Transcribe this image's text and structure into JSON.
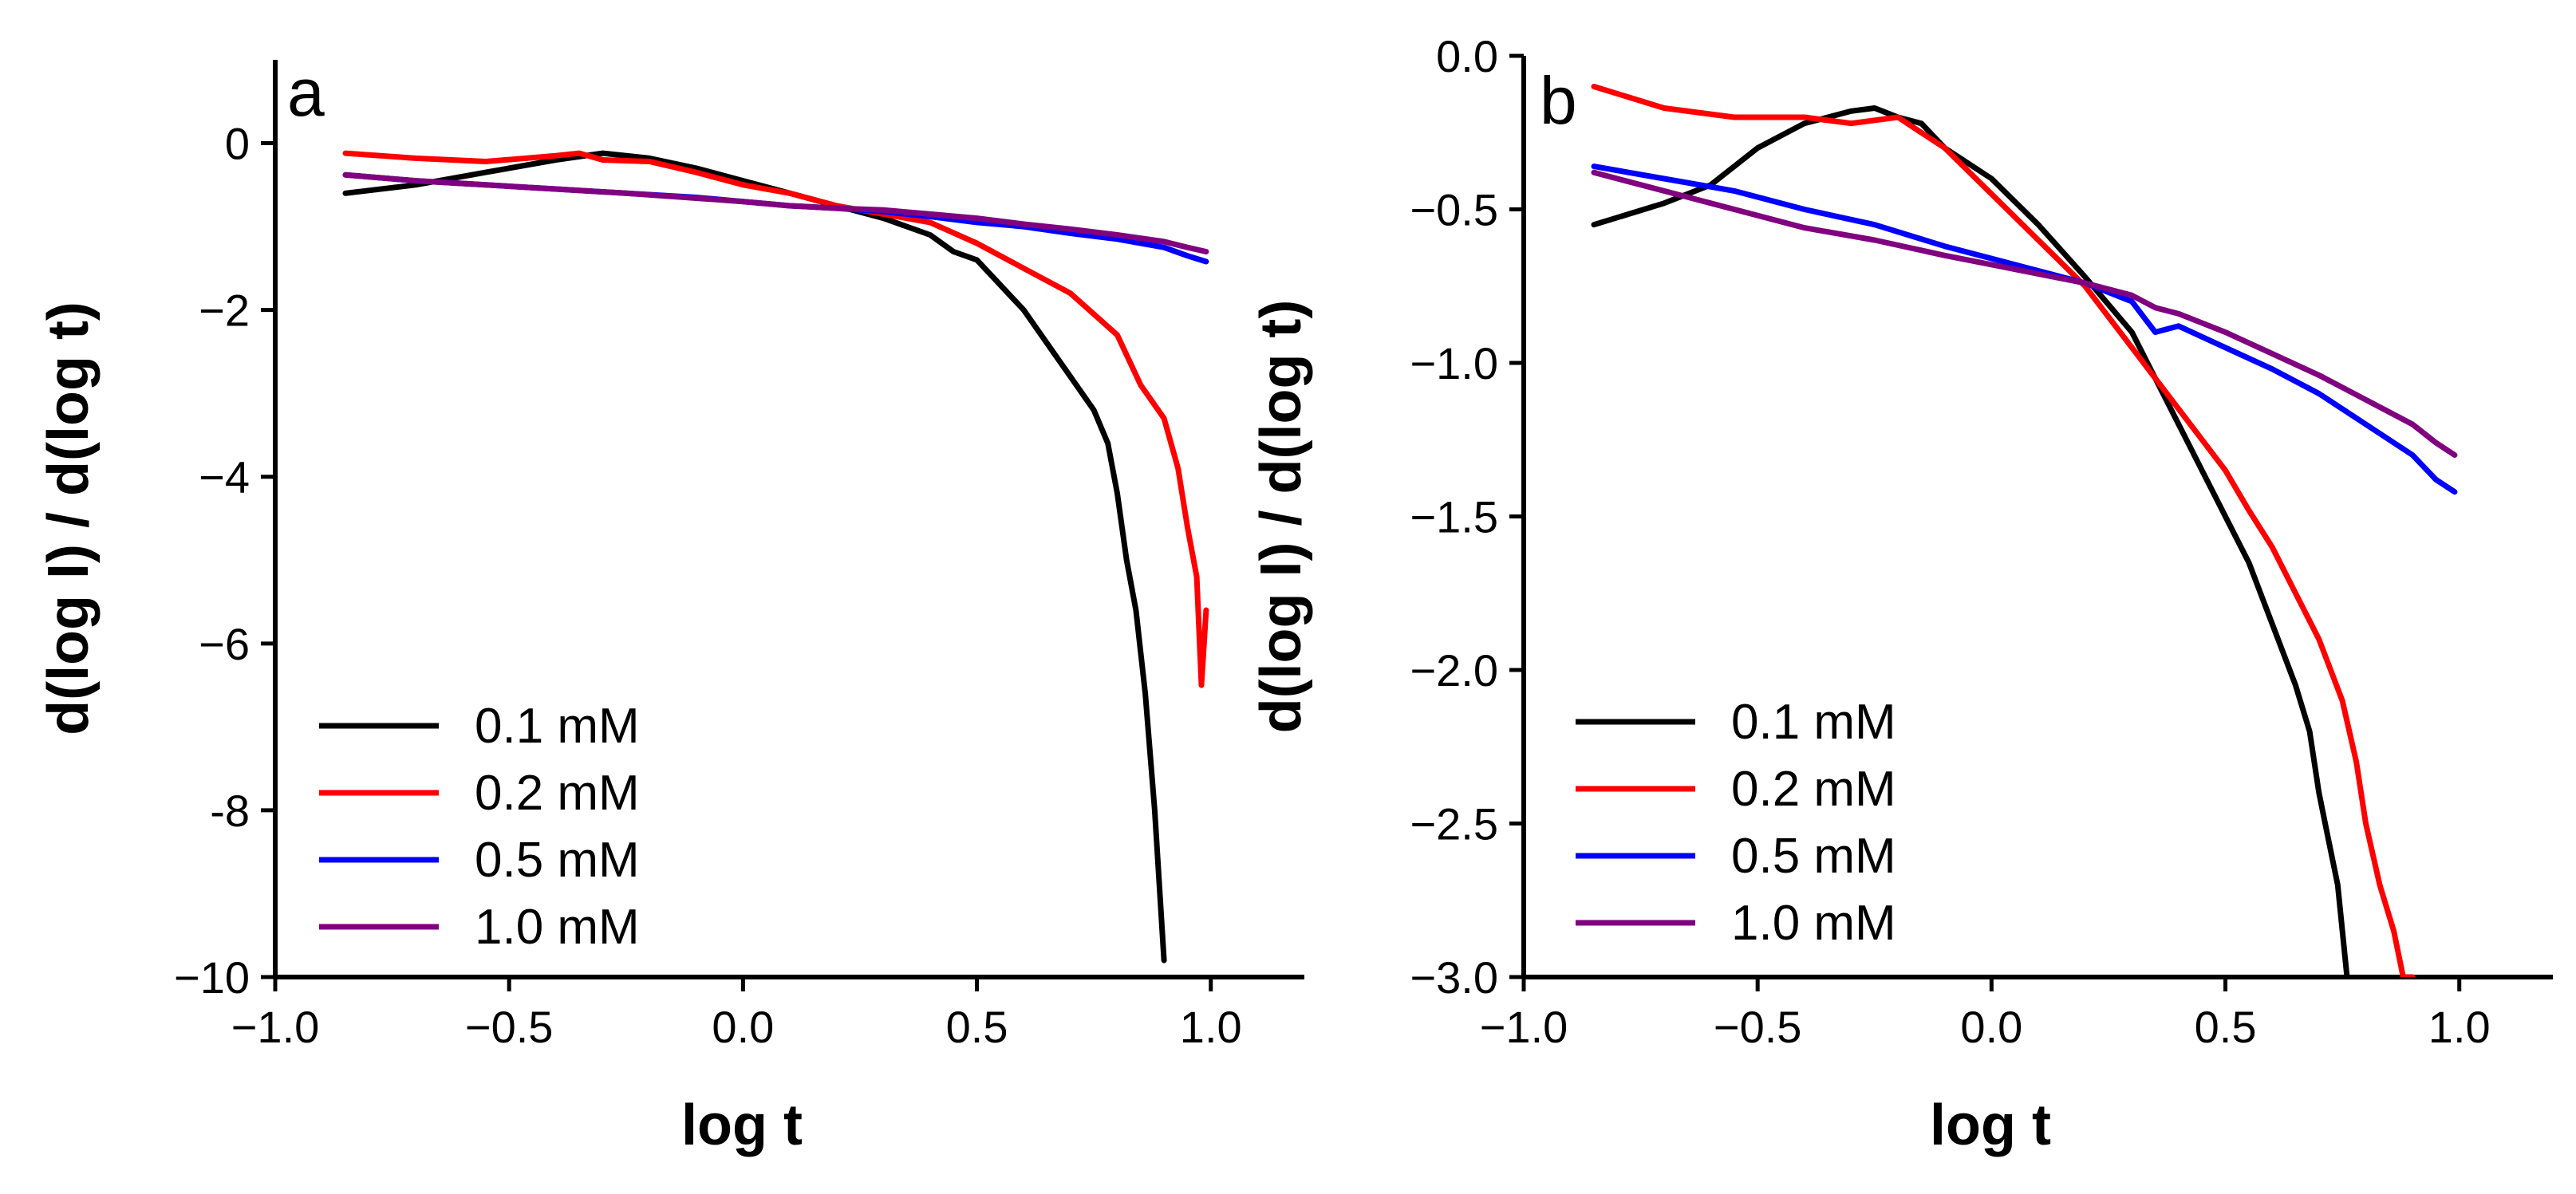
{
  "chart_data": [
    {
      "type": "line",
      "panel_label": "a",
      "xlabel": "log t",
      "ylabel": "d(log I) / d(log t)",
      "xlim": [
        -1.0,
        1.2
      ],
      "ylim": [
        -10,
        1
      ],
      "xticks": [
        -1.0,
        -0.5,
        0.0,
        0.5,
        1.0
      ],
      "xtick_labels": [
        "−1.0",
        "−0.5",
        "0.0",
        "0.5",
        "1.0"
      ],
      "yticks": [
        0,
        -2,
        -4,
        -6,
        -8,
        -10
      ],
      "ytick_labels": [
        "0",
        "−2",
        "−4",
        "−6",
        "-8",
        "−10"
      ],
      "legend_position": "lower-left",
      "series": [
        {
          "name": "0.1 mM",
          "color": "#000000",
          "x": [
            -0.85,
            -0.7,
            -0.55,
            -0.4,
            -0.3,
            -0.2,
            -0.1,
            0.0,
            0.1,
            0.2,
            0.3,
            0.4,
            0.45,
            0.5,
            0.55,
            0.6,
            0.65,
            0.7,
            0.75,
            0.78,
            0.8,
            0.82,
            0.84,
            0.86,
            0.88,
            0.9
          ],
          "y": [
            -0.6,
            -0.5,
            -0.35,
            -0.2,
            -0.12,
            -0.18,
            -0.3,
            -0.45,
            -0.6,
            -0.75,
            -0.9,
            -1.1,
            -1.3,
            -1.4,
            -1.7,
            -2.0,
            -2.4,
            -2.8,
            -3.2,
            -3.6,
            -4.2,
            -5.0,
            -5.6,
            -6.6,
            -8.0,
            -9.8
          ]
        },
        {
          "name": "0.2 mM",
          "color": "#ff0000",
          "x": [
            -0.85,
            -0.7,
            -0.55,
            -0.4,
            -0.35,
            -0.3,
            -0.2,
            -0.1,
            0.0,
            0.1,
            0.2,
            0.3,
            0.4,
            0.5,
            0.6,
            0.7,
            0.8,
            0.85,
            0.9,
            0.93,
            0.95,
            0.97,
            0.98,
            0.99
          ],
          "y": [
            -0.12,
            -0.18,
            -0.22,
            -0.15,
            -0.12,
            -0.2,
            -0.22,
            -0.35,
            -0.5,
            -0.6,
            -0.75,
            -0.85,
            -0.95,
            -1.2,
            -1.5,
            -1.8,
            -2.3,
            -2.9,
            -3.3,
            -3.9,
            -4.6,
            -5.2,
            -6.5,
            -5.6
          ]
        },
        {
          "name": "0.5 mM",
          "color": "#0000ff",
          "x": [
            -0.85,
            -0.7,
            -0.55,
            -0.4,
            -0.25,
            -0.1,
            0.0,
            0.1,
            0.2,
            0.3,
            0.4,
            0.5,
            0.6,
            0.7,
            0.8,
            0.9,
            0.95,
            0.99
          ],
          "y": [
            -0.38,
            -0.45,
            -0.5,
            -0.55,
            -0.6,
            -0.65,
            -0.7,
            -0.75,
            -0.78,
            -0.82,
            -0.88,
            -0.95,
            -1.0,
            -1.08,
            -1.15,
            -1.25,
            -1.35,
            -1.42
          ]
        },
        {
          "name": "1.0 mM",
          "color": "#800080",
          "x": [
            -0.85,
            -0.7,
            -0.55,
            -0.4,
            -0.25,
            -0.1,
            0.0,
            0.1,
            0.2,
            0.3,
            0.4,
            0.5,
            0.6,
            0.7,
            0.8,
            0.9,
            0.95,
            0.99
          ],
          "y": [
            -0.38,
            -0.45,
            -0.5,
            -0.55,
            -0.6,
            -0.66,
            -0.7,
            -0.75,
            -0.78,
            -0.8,
            -0.85,
            -0.9,
            -0.97,
            -1.03,
            -1.1,
            -1.18,
            -1.25,
            -1.3
          ]
        }
      ]
    },
    {
      "type": "line",
      "panel_label": "b",
      "xlabel": "log t",
      "ylabel": "d(log I) / d(log t)",
      "xlim": [
        -1.0,
        1.2
      ],
      "ylim": [
        -3.0,
        0.0
      ],
      "xticks": [
        -1.0,
        -0.5,
        0.0,
        0.5,
        1.0
      ],
      "xtick_labels": [
        "−1.0",
        "−0.5",
        "0.0",
        "0.5",
        "1.0"
      ],
      "yticks": [
        0.0,
        -0.5,
        -1.0,
        -1.5,
        -2.0,
        -2.5,
        -3.0
      ],
      "ytick_labels": [
        "0.0",
        "−0.5",
        "−1.0",
        "−1.5",
        "−2.0",
        "−2.5",
        "−3.0"
      ],
      "legend_position": "lower-left",
      "series": [
        {
          "name": "0.1 mM",
          "color": "#000000",
          "x": [
            -0.85,
            -0.7,
            -0.6,
            -0.5,
            -0.4,
            -0.3,
            -0.25,
            -0.2,
            -0.15,
            -0.1,
            0.0,
            0.1,
            0.2,
            0.3,
            0.35,
            0.4,
            0.45,
            0.5,
            0.55,
            0.6,
            0.65,
            0.68,
            0.7,
            0.72,
            0.74,
            0.76
          ],
          "y": [
            -0.55,
            -0.48,
            -0.42,
            -0.3,
            -0.22,
            -0.18,
            -0.17,
            -0.2,
            -0.22,
            -0.3,
            -0.4,
            -0.55,
            -0.72,
            -0.9,
            -1.05,
            -1.2,
            -1.35,
            -1.5,
            -1.65,
            -1.85,
            -2.05,
            -2.2,
            -2.4,
            -2.55,
            -2.7,
            -3.0
          ]
        },
        {
          "name": "0.2 mM",
          "color": "#ff0000",
          "x": [
            -0.85,
            -0.7,
            -0.55,
            -0.4,
            -0.3,
            -0.2,
            -0.15,
            -0.1,
            0.0,
            0.1,
            0.2,
            0.3,
            0.4,
            0.5,
            0.55,
            0.6,
            0.65,
            0.7,
            0.75,
            0.78,
            0.8,
            0.83,
            0.86,
            0.88,
            0.9
          ],
          "y": [
            -0.1,
            -0.17,
            -0.2,
            -0.2,
            -0.22,
            -0.2,
            -0.25,
            -0.3,
            -0.45,
            -0.6,
            -0.75,
            -0.95,
            -1.15,
            -1.35,
            -1.48,
            -1.6,
            -1.75,
            -1.9,
            -2.1,
            -2.3,
            -2.5,
            -2.7,
            -2.85,
            -3.0,
            -3.0
          ]
        },
        {
          "name": "0.5 mM",
          "color": "#0000ff",
          "x": [
            -0.85,
            -0.7,
            -0.55,
            -0.4,
            -0.25,
            -0.1,
            0.0,
            0.1,
            0.2,
            0.3,
            0.35,
            0.4,
            0.5,
            0.6,
            0.7,
            0.8,
            0.9,
            0.95,
            0.99
          ],
          "y": [
            -0.36,
            -0.4,
            -0.44,
            -0.5,
            -0.55,
            -0.62,
            -0.66,
            -0.7,
            -0.74,
            -0.8,
            -0.9,
            -0.88,
            -0.95,
            -1.02,
            -1.1,
            -1.2,
            -1.3,
            -1.38,
            -1.42
          ]
        },
        {
          "name": "1.0 mM",
          "color": "#800080",
          "x": [
            -0.85,
            -0.7,
            -0.55,
            -0.4,
            -0.25,
            -0.1,
            0.0,
            0.1,
            0.2,
            0.3,
            0.35,
            0.4,
            0.5,
            0.6,
            0.7,
            0.8,
            0.9,
            0.95,
            0.99
          ],
          "y": [
            -0.38,
            -0.44,
            -0.5,
            -0.56,
            -0.6,
            -0.65,
            -0.68,
            -0.71,
            -0.74,
            -0.78,
            -0.82,
            -0.84,
            -0.9,
            -0.97,
            -1.04,
            -1.12,
            -1.2,
            -1.26,
            -1.3
          ]
        }
      ]
    }
  ]
}
